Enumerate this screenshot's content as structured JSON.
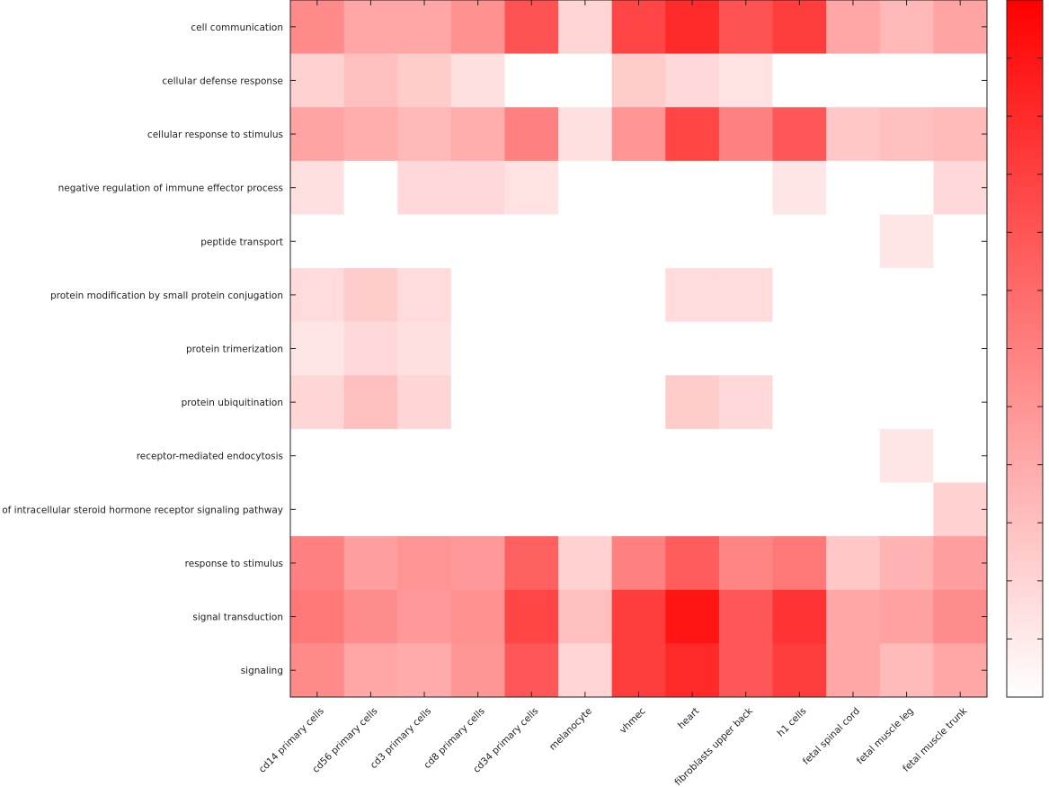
{
  "colors": {
    "low": "#ffffff",
    "high": "#ff0000",
    "missing": "#ffffff",
    "frame": "#222222"
  },
  "chart_data": {
    "type": "heatmap",
    "title": "",
    "xlabel": "",
    "ylabel": "",
    "colorbar": {
      "range": [
        0,
        1
      ],
      "position": "right",
      "tick_labels_shown": false
    },
    "x_categories": [
      "cd14 primary cells",
      "cd56 primary cells",
      "cd3 primary cells",
      "cd8 primary cells",
      "cd34 primary cells",
      "melanocyte",
      "vhmec",
      "heart",
      "fibroblasts upper back",
      "h1 cells",
      "fetal spinal cord",
      "fetal muscle leg",
      "fetal muscle trunk"
    ],
    "y_categories": [
      "cell communication",
      "cellular defense response",
      "cellular response to stimulus",
      "negative regulation of immune effector process",
      "peptide transport",
      "protein modification by small protein conjugation",
      "protein trimerization",
      "protein ubiquitination",
      "receptor-mediated endocytosis",
      "of intracellular steroid hormone receptor signaling pathway",
      "response to stimulus",
      "signal transduction",
      "signaling"
    ],
    "values": [
      [
        0.46,
        0.35,
        0.35,
        0.43,
        0.68,
        0.17,
        0.73,
        0.83,
        0.68,
        0.76,
        0.35,
        0.28,
        0.36
      ],
      [
        0.18,
        0.25,
        0.2,
        0.12,
        0.0,
        0.0,
        0.2,
        0.15,
        0.11,
        0.0,
        0.0,
        0.0,
        0.0
      ],
      [
        0.36,
        0.32,
        0.28,
        0.32,
        0.5,
        0.12,
        0.42,
        0.73,
        0.5,
        0.66,
        0.22,
        0.25,
        0.27
      ],
      [
        0.12,
        0.0,
        0.15,
        0.15,
        0.11,
        0.0,
        0.0,
        0.0,
        0.0,
        0.1,
        0.0,
        0.0,
        0.15
      ],
      [
        0.0,
        0.0,
        0.0,
        0.0,
        0.0,
        0.0,
        0.0,
        0.0,
        0.0,
        0.0,
        0.0,
        0.1,
        0.0
      ],
      [
        0.14,
        0.2,
        0.14,
        0.0,
        0.0,
        0.0,
        0.0,
        0.14,
        0.14,
        0.0,
        0.0,
        0.0,
        0.0
      ],
      [
        0.1,
        0.15,
        0.12,
        0.0,
        0.0,
        0.0,
        0.0,
        0.0,
        0.0,
        0.0,
        0.0,
        0.0,
        0.0
      ],
      [
        0.16,
        0.25,
        0.16,
        0.0,
        0.0,
        0.0,
        0.0,
        0.2,
        0.15,
        0.0,
        0.0,
        0.0,
        0.0
      ],
      [
        0.0,
        0.0,
        0.0,
        0.0,
        0.0,
        0.0,
        0.0,
        0.0,
        0.0,
        0.0,
        0.0,
        0.1,
        0.0
      ],
      [
        0.0,
        0.0,
        0.0,
        0.0,
        0.0,
        0.0,
        0.0,
        0.0,
        0.0,
        0.0,
        0.0,
        0.0,
        0.18
      ],
      [
        0.5,
        0.38,
        0.42,
        0.4,
        0.62,
        0.18,
        0.5,
        0.64,
        0.48,
        0.53,
        0.22,
        0.3,
        0.38
      ],
      [
        0.53,
        0.45,
        0.4,
        0.43,
        0.73,
        0.25,
        0.76,
        0.92,
        0.66,
        0.8,
        0.35,
        0.37,
        0.45
      ],
      [
        0.46,
        0.35,
        0.33,
        0.41,
        0.66,
        0.17,
        0.76,
        0.84,
        0.66,
        0.76,
        0.35,
        0.27,
        0.35
      ]
    ]
  }
}
